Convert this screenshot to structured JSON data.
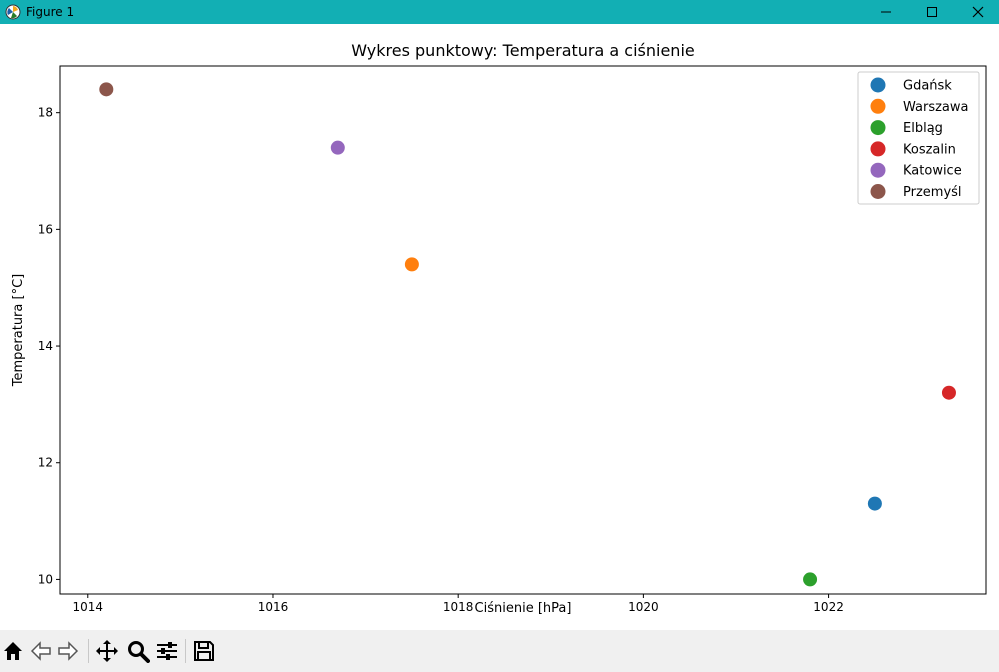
{
  "window": {
    "title": "Figure 1"
  },
  "toolbar": {
    "buttons": [
      "home-icon",
      "back-icon",
      "forward-icon",
      "pan-icon",
      "zoom-icon",
      "configure-subplots-icon",
      "save-icon"
    ]
  },
  "chart_data": {
    "type": "scatter",
    "title": "Wykres punktowy: Temperatura a ciśnienie",
    "xlabel": "Ciśnienie [hPa]",
    "ylabel": "Temperatura [°C]",
    "xlim": [
      1013.7,
      1023.7
    ],
    "ylim": [
      9.75,
      18.8
    ],
    "xticks": [
      1014,
      1016,
      1018,
      1020,
      1022
    ],
    "yticks": [
      10,
      12,
      14,
      16,
      18
    ],
    "grid": false,
    "legend_position": "top-right",
    "series": [
      {
        "name": "Gdańsk",
        "color": "#1f77b4",
        "points": [
          [
            1022.5,
            11.3
          ]
        ]
      },
      {
        "name": "Warszawa",
        "color": "#ff7f0e",
        "points": [
          [
            1017.5,
            15.4
          ]
        ]
      },
      {
        "name": "Elbląg",
        "color": "#2ca02c",
        "points": [
          [
            1021.8,
            10.0
          ]
        ]
      },
      {
        "name": "Koszalin",
        "color": "#d62728",
        "points": [
          [
            1023.3,
            13.2
          ]
        ]
      },
      {
        "name": "Katowice",
        "color": "#9467bd",
        "points": [
          [
            1016.7,
            17.4
          ]
        ]
      },
      {
        "name": "Przemyśl",
        "color": "#8c564b",
        "points": [
          [
            1014.2,
            18.4
          ]
        ]
      }
    ]
  }
}
